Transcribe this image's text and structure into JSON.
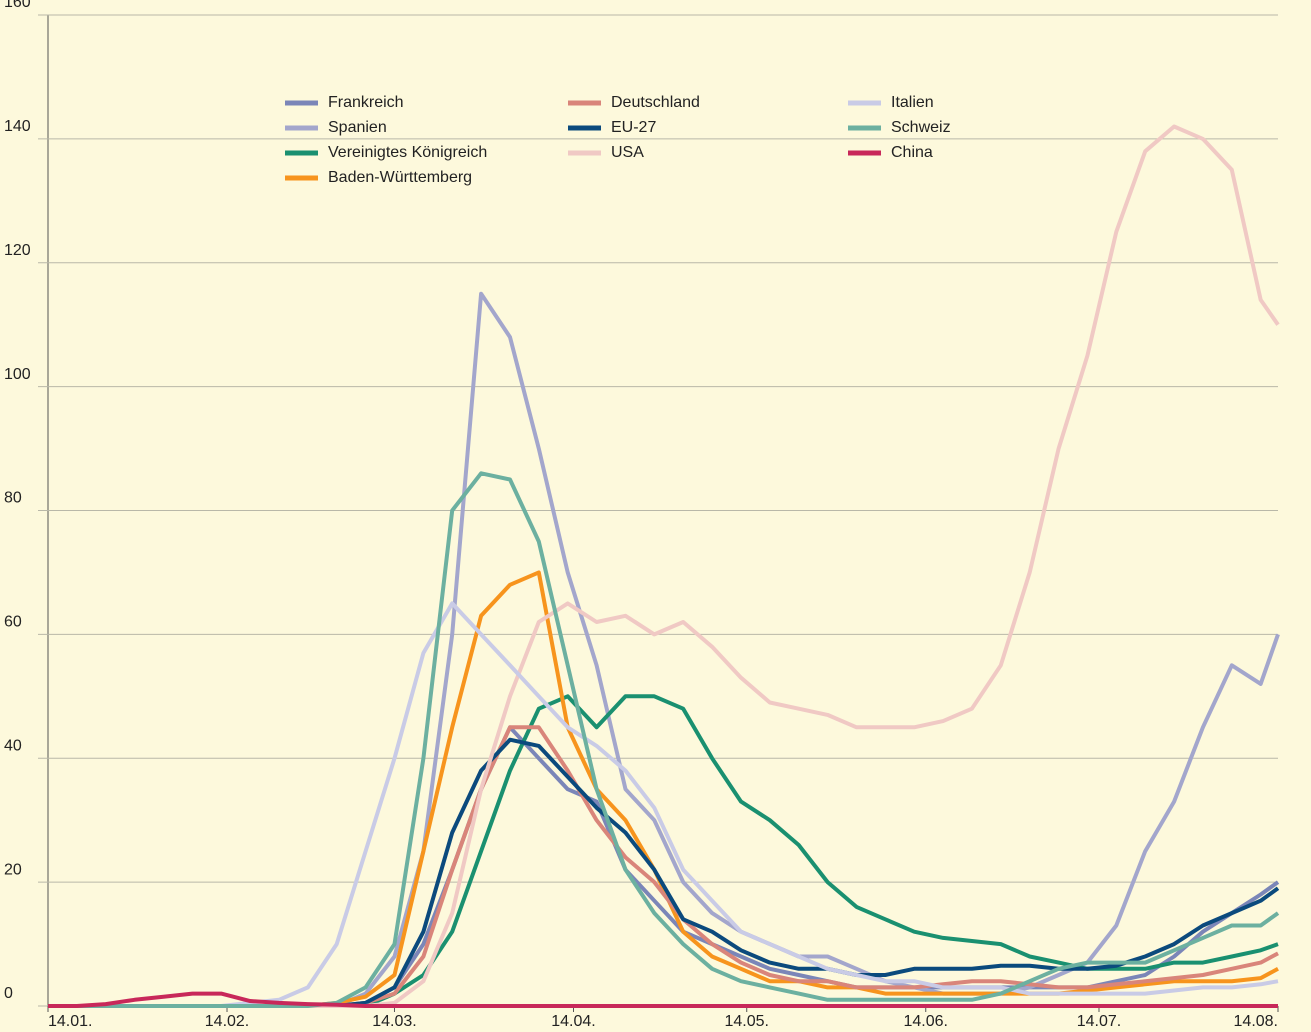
{
  "chart_data": {
    "type": "line",
    "x": [
      0,
      5,
      10,
      15,
      20,
      25,
      30,
      35,
      40,
      45,
      50,
      55,
      60,
      65,
      70,
      75,
      80,
      85,
      90,
      95,
      100,
      105,
      110,
      115,
      120,
      125,
      130,
      135,
      140,
      145,
      150,
      155,
      160,
      165,
      170,
      175,
      180,
      185,
      190,
      195,
      200,
      205,
      210,
      213
    ],
    "xlim": [
      0,
      213
    ],
    "xticks": [
      {
        "value": 0,
        "label": "14.01."
      },
      {
        "value": 31,
        "label": "14.02."
      },
      {
        "value": 60,
        "label": "14.03."
      },
      {
        "value": 91,
        "label": "14.04."
      },
      {
        "value": 121,
        "label": "14.05."
      },
      {
        "value": 152,
        "label": "14.06."
      },
      {
        "value": 182,
        "label": "14.07."
      },
      {
        "value": 213,
        "label": "14.08."
      }
    ],
    "ylim": [
      0,
      160
    ],
    "yticks": [
      0,
      20,
      40,
      60,
      80,
      100,
      120,
      140,
      160
    ],
    "grid": true,
    "series": [
      {
        "name": "Frankreich",
        "color": "#7b86b8",
        "values": [
          0,
          0,
          0,
          0,
          0,
          0,
          0,
          0,
          0,
          0,
          0,
          0.5,
          3,
          10,
          22,
          35,
          45,
          40,
          35,
          33,
          22,
          17,
          12,
          10,
          8,
          6,
          5,
          4,
          3,
          3,
          3,
          3,
          3,
          3,
          3,
          3,
          3,
          4,
          5,
          8,
          12,
          15,
          18,
          20
        ]
      },
      {
        "name": "Spanien",
        "color": "#a3a6cc",
        "values": [
          0,
          0,
          0,
          0,
          0,
          0,
          0,
          0,
          0,
          0,
          0,
          2,
          8,
          25,
          60,
          115,
          108,
          90,
          70,
          55,
          35,
          30,
          20,
          15,
          12,
          10,
          8,
          8,
          6,
          4,
          3,
          2,
          2,
          2,
          3,
          5,
          7,
          13,
          25,
          33,
          45,
          55,
          52,
          60
        ]
      },
      {
        "name": "Vereinigtes Königreich",
        "color": "#1a9070",
        "values": [
          0,
          0,
          0,
          0,
          0,
          0,
          0,
          0,
          0,
          0,
          0,
          0,
          2,
          5,
          12,
          25,
          38,
          48,
          50,
          45,
          50,
          50,
          48,
          40,
          33,
          30,
          26,
          20,
          16,
          14,
          12,
          11,
          10.5,
          10,
          8,
          7,
          6,
          6,
          6,
          7,
          7,
          8,
          9,
          10
        ]
      },
      {
        "name": "Baden-Württemberg",
        "color": "#f7941d",
        "values": [
          0,
          0,
          0,
          0,
          0,
          0,
          0,
          0,
          0,
          0,
          0.5,
          1.5,
          5,
          25,
          45,
          63,
          68,
          70,
          45,
          35,
          30,
          22,
          12,
          8,
          6,
          4,
          4,
          3,
          3,
          2,
          2,
          2,
          2,
          2,
          2,
          2,
          2.5,
          3,
          3.5,
          4,
          4,
          4,
          4.5,
          6
        ]
      },
      {
        "name": "Deutschland",
        "color": "#d9857a",
        "values": [
          0,
          0,
          0,
          0,
          0,
          0,
          0,
          0,
          0,
          0,
          0,
          0.5,
          2,
          8,
          22,
          35,
          45,
          45,
          38,
          30,
          24,
          20,
          14,
          10,
          7,
          5,
          4,
          4,
          3,
          3,
          3,
          3.5,
          4,
          4,
          3.5,
          3,
          3,
          3.5,
          4,
          4.5,
          5,
          6,
          7,
          8.5
        ]
      },
      {
        "name": "EU-27",
        "color": "#0b4a7d",
        "values": [
          0,
          0,
          0,
          0,
          0,
          0,
          0,
          0,
          0,
          0,
          0,
          0.5,
          3,
          12,
          28,
          38,
          43,
          42,
          37,
          32,
          28,
          22,
          14,
          12,
          9,
          7,
          6,
          6,
          5,
          5,
          6,
          6,
          6,
          6.5,
          6.5,
          6,
          6,
          6.5,
          8,
          10,
          13,
          15,
          17,
          19
        ]
      },
      {
        "name": "USA",
        "color": "#f0c9c4",
        "values": [
          0,
          0,
          0,
          0,
          0,
          0,
          0,
          0,
          0,
          0,
          0,
          0,
          0.5,
          4,
          15,
          35,
          50,
          62,
          65,
          62,
          63,
          60,
          62,
          58,
          53,
          49,
          48,
          47,
          45,
          45,
          45,
          46,
          48,
          55,
          70,
          90,
          105,
          125,
          138,
          142,
          140,
          135,
          114,
          110
        ]
      },
      {
        "name": "Italien",
        "color": "#c9cbe6",
        "values": [
          0,
          0,
          0,
          0,
          0,
          0,
          0,
          0.5,
          1,
          3,
          10,
          25,
          40,
          57,
          65,
          60,
          55,
          50,
          45,
          42,
          38,
          32,
          22,
          17,
          12,
          10,
          8,
          6,
          5,
          4,
          4,
          3,
          3,
          3,
          2,
          2,
          2,
          2,
          2,
          2.5,
          3,
          3,
          3.5,
          4
        ]
      },
      {
        "name": "Schweiz",
        "color": "#6cb0a0",
        "values": [
          0,
          0,
          0,
          0,
          0,
          0,
          0,
          0,
          0,
          0,
          0.5,
          3,
          10,
          40,
          80,
          86,
          85,
          75,
          55,
          35,
          22,
          15,
          10,
          6,
          4,
          3,
          2,
          1,
          1,
          1,
          1,
          1,
          1,
          2,
          4,
          6,
          7,
          7,
          7,
          9,
          11,
          13,
          13,
          15
        ]
      },
      {
        "name": "China",
        "color": "#c8285a",
        "values": [
          0,
          0,
          0.3,
          1,
          1.5,
          2,
          2,
          0.8,
          0.5,
          0.3,
          0.2,
          0,
          0,
          0,
          0,
          0,
          0,
          0,
          0,
          0,
          0,
          0,
          0,
          0,
          0,
          0,
          0,
          0,
          0,
          0,
          0,
          0,
          0,
          0,
          0,
          0,
          0,
          0,
          0,
          0,
          0,
          0,
          0,
          0
        ]
      }
    ]
  }
}
